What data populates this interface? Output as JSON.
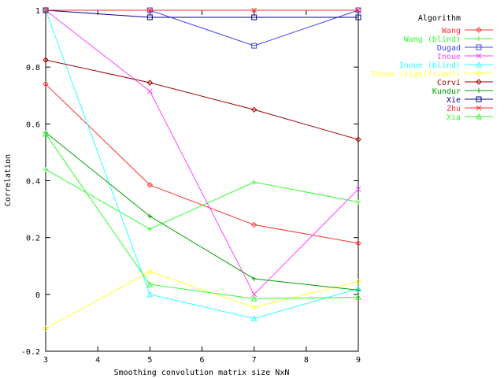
{
  "chart_data": {
    "type": "line",
    "title": "",
    "xlabel": "Smoothing convolution matrix size NxN",
    "ylabel": "Correlation",
    "xlim": [
      3,
      9
    ],
    "ylim": [
      -0.2,
      1
    ],
    "x_ticks": [
      "3",
      "4",
      "5",
      "6",
      "7",
      "8",
      "9"
    ],
    "y_ticks": [
      "-0.2",
      "0",
      "0.2",
      "0.4",
      "0.6",
      "0.8",
      "1"
    ],
    "grid": false,
    "legend_title": "Algorithm",
    "legend_position": "top-right outside",
    "x": [
      3,
      5,
      7,
      9
    ],
    "series": [
      {
        "name": "Wang",
        "color": "#ff3030",
        "marker": "diamond",
        "values": [
          0.74,
          0.385,
          0.245,
          0.18
        ]
      },
      {
        "name": "Wang (blind)",
        "color": "#30ff30",
        "marker": "plus",
        "values": [
          0.44,
          0.23,
          0.395,
          0.325
        ]
      },
      {
        "name": "Dugad",
        "color": "#4040ff",
        "marker": "square",
        "values": [
          1.0,
          1.0,
          0.875,
          1.0
        ]
      },
      {
        "name": "Inoue",
        "color": "#ff40ff",
        "marker": "x",
        "values": [
          1.0,
          0.715,
          0.0,
          0.37
        ]
      },
      {
        "name": "Inoue (blind)",
        "color": "#30ffff",
        "marker": "triangle",
        "values": [
          1.0,
          0.0,
          -0.085,
          0.02
        ]
      },
      {
        "name": "Inoue (significant)",
        "color": "#ffff30",
        "marker": "diamond",
        "values": [
          -0.12,
          0.08,
          -0.045,
          0.045
        ]
      },
      {
        "name": "Corvi",
        "color": "#a00000",
        "marker": "diamond",
        "values": [
          0.825,
          0.745,
          0.65,
          0.545
        ]
      },
      {
        "name": "Kundur",
        "color": "#00a000",
        "marker": "plus",
        "values": [
          0.57,
          0.275,
          0.055,
          0.015
        ]
      },
      {
        "name": "Xie",
        "color": "#000090",
        "marker": "square",
        "values": [
          1.0,
          0.975,
          0.975,
          0.975
        ]
      },
      {
        "name": "Zhu",
        "color": "#ff3030",
        "marker": "x",
        "values": [
          1.0,
          1.0,
          1.0,
          1.0
        ]
      },
      {
        "name": "Xia",
        "color": "#30ff30",
        "marker": "triangle",
        "values": [
          0.565,
          0.035,
          -0.015,
          -0.01
        ]
      }
    ]
  }
}
